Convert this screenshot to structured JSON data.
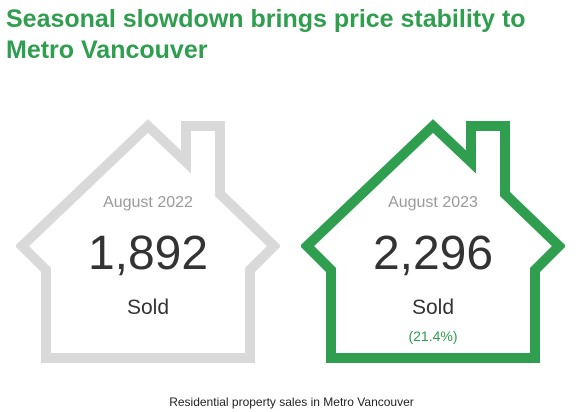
{
  "headline": "Seasonal slowdown brings price stability to Metro Vancouver",
  "caption": "Residential property sales in Metro Vancouver",
  "colors": {
    "accent": "#2f9e4f",
    "house_previous": "#d9d9d9",
    "house_current": "#2f9e4f",
    "period_text": "#9a9a9a",
    "value_text": "#333333"
  },
  "chart_data": {
    "type": "table",
    "title": "Seasonal slowdown brings price stability to Metro Vancouver",
    "caption": "Residential property sales in Metro Vancouver",
    "categories": [
      "August 2022",
      "August 2023"
    ],
    "values": [
      1892,
      2296
    ],
    "records": [
      {
        "period": "August 2022",
        "value": "1,892",
        "label": "Sold",
        "change": ""
      },
      {
        "period": "August 2023",
        "value": "2,296",
        "label": "Sold",
        "change": "(21.4%)"
      }
    ]
  }
}
